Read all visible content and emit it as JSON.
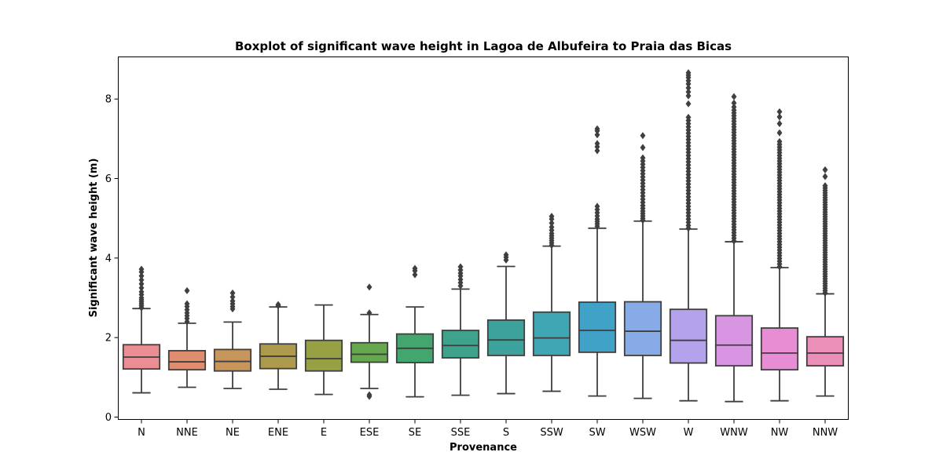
{
  "chart_data": {
    "type": "boxplot",
    "title": "Boxplot of significant wave height in Lagoa de Albufeira to Praia das Bicas",
    "xlabel": "Provenance",
    "ylabel": "Significant wave height (m)",
    "ylim": [
      -0.05,
      9.05
    ],
    "yticks": [
      0,
      2,
      4,
      6,
      8
    ],
    "grid": false,
    "categories": [
      "N",
      "NNE",
      "NE",
      "ENE",
      "E",
      "ESE",
      "SE",
      "SSE",
      "S",
      "SSW",
      "SW",
      "WSW",
      "W",
      "WNW",
      "NW",
      "NNW"
    ],
    "boxes": [
      {
        "category": "N",
        "color": "#ea8e93",
        "whislo": 0.61,
        "q1": 1.21,
        "median": 1.51,
        "q3": 1.82,
        "whishi": 2.73,
        "fliers": [
          2.75,
          2.8,
          2.85,
          2.9,
          2.95,
          3.0,
          3.08,
          3.15,
          3.25,
          3.35,
          3.45,
          3.55,
          3.65,
          3.72
        ]
      },
      {
        "category": "NNE",
        "color": "#e08c6f",
        "whislo": 0.75,
        "q1": 1.19,
        "median": 1.39,
        "q3": 1.67,
        "whishi": 2.36,
        "fliers": [
          2.4,
          2.48,
          2.55,
          2.62,
          2.7,
          2.78,
          2.85,
          3.18
        ]
      },
      {
        "category": "NE",
        "color": "#c8965a",
        "whislo": 0.72,
        "q1": 1.16,
        "median": 1.4,
        "q3": 1.7,
        "whishi": 2.39,
        "fliers": [
          2.72,
          2.78,
          2.85,
          2.92,
          3.02,
          3.12
        ]
      },
      {
        "category": "ENE",
        "color": "#ae9a4c",
        "whislo": 0.7,
        "q1": 1.22,
        "median": 1.53,
        "q3": 1.84,
        "whishi": 2.77,
        "fliers": [
          2.8,
          2.83
        ]
      },
      {
        "category": "E",
        "color": "#97a043",
        "whislo": 0.57,
        "q1": 1.16,
        "median": 1.47,
        "q3": 1.93,
        "whishi": 2.82,
        "fliers": []
      },
      {
        "category": "ESE",
        "color": "#67a84f",
        "whislo": 0.72,
        "q1": 1.38,
        "median": 1.58,
        "q3": 1.87,
        "whishi": 2.58,
        "fliers": [
          0.52,
          0.56,
          2.62,
          3.27
        ]
      },
      {
        "category": "SE",
        "color": "#44a66f",
        "whislo": 0.51,
        "q1": 1.37,
        "median": 1.73,
        "q3": 2.09,
        "whishi": 2.77,
        "fliers": [
          3.58,
          3.68,
          3.74
        ]
      },
      {
        "category": "SSE",
        "color": "#3fa38c",
        "whislo": 0.55,
        "q1": 1.49,
        "median": 1.8,
        "q3": 2.18,
        "whishi": 3.22,
        "fliers": [
          3.3,
          3.38,
          3.46,
          3.55,
          3.62,
          3.7,
          3.78
        ]
      },
      {
        "category": "S",
        "color": "#3ca29b",
        "whislo": 0.59,
        "q1": 1.55,
        "median": 1.94,
        "q3": 2.44,
        "whishi": 3.79,
        "fliers": [
          3.95,
          4.02,
          4.08
        ]
      },
      {
        "category": "SSW",
        "color": "#3fa7b4",
        "whislo": 0.65,
        "q1": 1.55,
        "median": 1.99,
        "q3": 2.64,
        "whishi": 4.3,
        "fliers": [
          4.32,
          4.38,
          4.44,
          4.5,
          4.56,
          4.62,
          4.7,
          4.78,
          4.88,
          4.98,
          5.05
        ]
      },
      {
        "category": "SW",
        "color": "#41a2c8",
        "whislo": 0.53,
        "q1": 1.63,
        "median": 2.18,
        "q3": 2.89,
        "whishi": 4.75,
        "fliers": [
          4.8,
          4.86,
          4.92,
          4.98,
          5.06,
          5.14,
          5.22,
          5.3,
          6.7,
          6.8,
          6.88,
          7.1,
          7.2,
          7.25
        ]
      },
      {
        "category": "WSW",
        "color": "#86abe6",
        "whislo": 0.47,
        "q1": 1.55,
        "median": 2.16,
        "q3": 2.9,
        "whishi": 4.93,
        "fliers": [
          4.95,
          5.0,
          5.06,
          5.12,
          5.18,
          5.25,
          5.32,
          5.4,
          5.48,
          5.56,
          5.64,
          5.72,
          5.8,
          5.88,
          5.96,
          6.04,
          6.12,
          6.2,
          6.28,
          6.36,
          6.44,
          6.52,
          6.78,
          7.08
        ]
      },
      {
        "category": "W",
        "color": "#b4a3ec",
        "whislo": 0.41,
        "q1": 1.36,
        "median": 1.93,
        "q3": 2.71,
        "whishi": 4.73,
        "fliers": [
          4.75,
          4.82,
          4.9,
          4.98,
          5.06,
          5.14,
          5.22,
          5.3,
          5.38,
          5.46,
          5.54,
          5.62,
          5.7,
          5.78,
          5.86,
          5.94,
          6.02,
          6.1,
          6.18,
          6.26,
          6.34,
          6.42,
          6.5,
          6.58,
          6.66,
          6.74,
          6.82,
          6.9,
          6.98,
          7.06,
          7.14,
          7.22,
          7.3,
          7.38,
          7.46,
          7.54,
          7.88,
          8.08,
          8.18,
          8.28,
          8.38,
          8.46,
          8.54,
          8.6,
          8.66
        ]
      },
      {
        "category": "WNW",
        "color": "#d896e2",
        "whislo": 0.39,
        "q1": 1.29,
        "median": 1.81,
        "q3": 2.55,
        "whishi": 4.41,
        "fliers": [
          4.43,
          4.5,
          4.57,
          4.64,
          4.71,
          4.78,
          4.85,
          4.92,
          4.99,
          5.06,
          5.13,
          5.2,
          5.27,
          5.34,
          5.41,
          5.48,
          5.55,
          5.62,
          5.69,
          5.76,
          5.83,
          5.9,
          5.97,
          6.04,
          6.11,
          6.18,
          6.25,
          6.32,
          6.39,
          6.46,
          6.53,
          6.6,
          6.67,
          6.74,
          6.81,
          6.88,
          6.95,
          7.02,
          7.09,
          7.16,
          7.23,
          7.3,
          7.37,
          7.44,
          7.51,
          7.58,
          7.65,
          7.72,
          7.8,
          7.9,
          8.06
        ]
      },
      {
        "category": "NW",
        "color": "#e88cd4",
        "whislo": 0.41,
        "q1": 1.19,
        "median": 1.61,
        "q3": 2.24,
        "whishi": 3.76,
        "fliers": [
          3.78,
          3.85,
          3.92,
          3.99,
          4.06,
          4.13,
          4.2,
          4.27,
          4.34,
          4.41,
          4.48,
          4.55,
          4.62,
          4.69,
          4.76,
          4.83,
          4.9,
          4.97,
          5.04,
          5.11,
          5.18,
          5.25,
          5.32,
          5.39,
          5.46,
          5.53,
          5.6,
          5.67,
          5.74,
          5.81,
          5.88,
          5.95,
          6.02,
          6.09,
          6.16,
          6.23,
          6.3,
          6.37,
          6.44,
          6.51,
          6.58,
          6.65,
          6.72,
          6.79,
          6.86,
          6.93,
          7.15,
          7.38,
          7.55,
          7.68
        ]
      },
      {
        "category": "NNW",
        "color": "#e98fb8",
        "whislo": 0.53,
        "q1": 1.29,
        "median": 1.61,
        "q3": 2.02,
        "whishi": 3.1,
        "fliers": [
          3.12,
          3.18,
          3.24,
          3.3,
          3.36,
          3.42,
          3.48,
          3.54,
          3.6,
          3.66,
          3.72,
          3.78,
          3.84,
          3.9,
          3.96,
          4.02,
          4.08,
          4.14,
          4.2,
          4.26,
          4.32,
          4.38,
          4.44,
          4.5,
          4.56,
          4.62,
          4.68,
          4.74,
          4.8,
          4.86,
          4.92,
          4.98,
          5.04,
          5.1,
          5.16,
          5.22,
          5.28,
          5.34,
          5.4,
          5.46,
          5.52,
          5.58,
          5.64,
          5.7,
          5.76,
          5.82,
          6.05,
          6.22
        ]
      }
    ]
  }
}
